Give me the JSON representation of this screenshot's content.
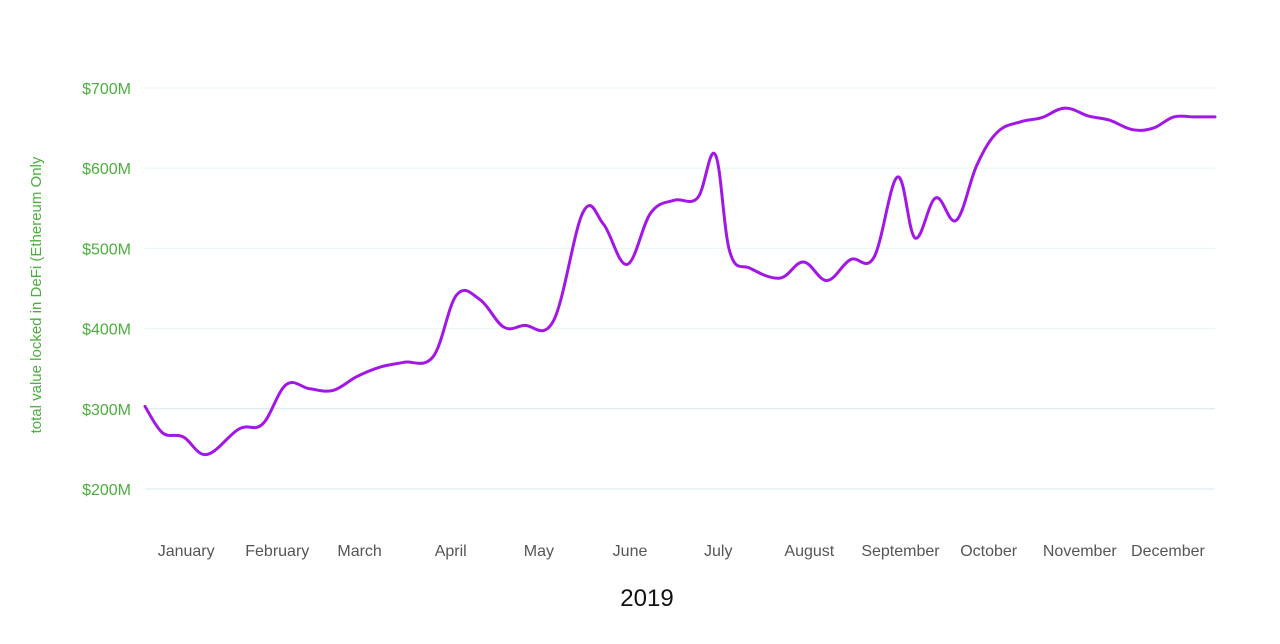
{
  "chart_data": {
    "type": "line",
    "title": "",
    "xlabel": "2019",
    "ylabel": "total value locked in DeFi (Ethereum Only",
    "x_tick_labels": [
      "January",
      "February",
      "March",
      "April",
      "May",
      "June",
      "July",
      "August",
      "September",
      "October",
      "November",
      "December"
    ],
    "y_tick_labels": [
      "$200M",
      "$300M",
      "$400M",
      "$500M",
      "$600M",
      "$700M"
    ],
    "y_ticks": [
      200,
      300,
      400,
      500,
      600,
      700
    ],
    "ylim": [
      200,
      700
    ],
    "xlim": [
      "2019-01-01",
      "2019-12-31"
    ],
    "grid": "horizontal",
    "legend": "none",
    "colors": {
      "line": "#a317e6",
      "tick_label_y": "#4caf3f",
      "tick_label_x": "#555555",
      "axis_title_y": "#4caf3f",
      "axis_title_x": "#111111",
      "grid_upper": "#e6f7f1",
      "grid_lower": "#d2e8ee"
    },
    "series": [
      {
        "x": [
          "2019-01-01",
          "2019-01-07",
          "2019-01-14",
          "2019-01-22",
          "2019-02-02",
          "2019-02-10",
          "2019-02-18",
          "2019-02-26",
          "2019-03-06",
          "2019-03-14",
          "2019-03-22",
          "2019-03-30",
          "2019-04-09",
          "2019-04-17",
          "2019-04-25",
          "2019-05-03",
          "2019-05-10",
          "2019-05-20",
          "2019-05-30",
          "2019-06-06",
          "2019-06-14",
          "2019-06-22",
          "2019-06-30",
          "2019-07-08",
          "2019-07-14",
          "2019-07-19",
          "2019-07-26",
          "2019-08-05",
          "2019-08-13",
          "2019-08-21",
          "2019-08-29",
          "2019-09-06",
          "2019-09-14",
          "2019-09-20",
          "2019-09-27",
          "2019-10-04",
          "2019-10-11",
          "2019-10-18",
          "2019-10-26",
          "2019-11-02",
          "2019-11-10",
          "2019-11-18",
          "2019-11-25",
          "2019-12-03",
          "2019-12-10",
          "2019-12-17",
          "2019-12-24",
          "2019-12-31"
        ],
        "y": [
          303,
          270,
          265,
          243,
          275,
          281,
          330,
          325,
          323,
          340,
          352,
          358,
          365,
          442,
          436,
          402,
          404,
          410,
          545,
          530,
          480,
          544,
          560,
          563,
          617,
          495,
          475,
          463,
          483,
          460,
          486,
          489,
          589,
          513,
          563,
          535,
          604,
          645,
          658,
          663,
          675,
          665,
          660,
          648,
          650,
          664,
          664,
          664
        ]
      }
    ]
  }
}
